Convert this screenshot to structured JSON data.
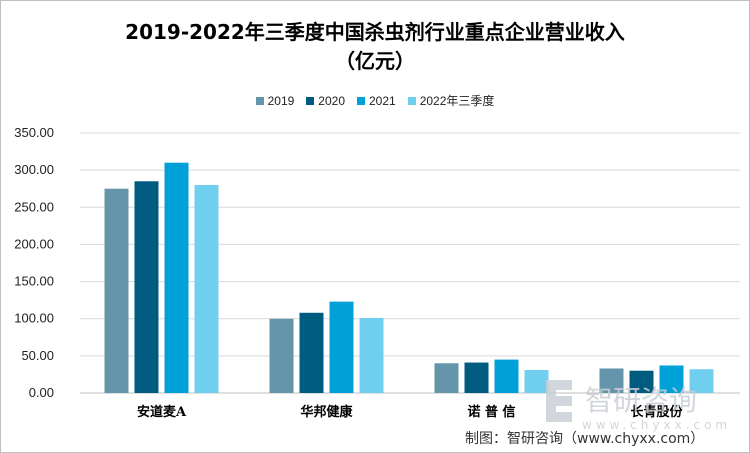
{
  "chart_data": {
    "type": "bar",
    "title_line1": "2019-2022年三季度中国杀虫剂行业重点企业营业收入",
    "title_line2": "（亿元）",
    "categories": [
      "安道麦A",
      "华邦健康",
      "诺 普 信",
      "长青股份"
    ],
    "series": [
      {
        "name": "2019",
        "color": "#6495aa",
        "values": [
          275,
          100,
          40,
          33
        ]
      },
      {
        "name": "2020",
        "color": "#005b80",
        "values": [
          285,
          108,
          41,
          30
        ]
      },
      {
        "name": "2021",
        "color": "#00a1d9",
        "values": [
          310,
          123,
          45,
          37
        ]
      },
      {
        "name": "2022年三季度",
        "color": "#70cfee",
        "values": [
          280,
          101,
          31,
          32
        ]
      }
    ],
    "y_ticks": [
      "0.00",
      "50.00",
      "100.00",
      "150.00",
      "200.00",
      "250.00",
      "300.00",
      "350.00"
    ],
    "ylim": [
      0,
      350
    ],
    "grid": true,
    "legend_position": "top-center"
  },
  "watermark": {
    "brand": "智研咨询",
    "url": "www.chyxx.com"
  },
  "footer": {
    "source": "制图：智研咨询（www.chyxx.com）"
  }
}
